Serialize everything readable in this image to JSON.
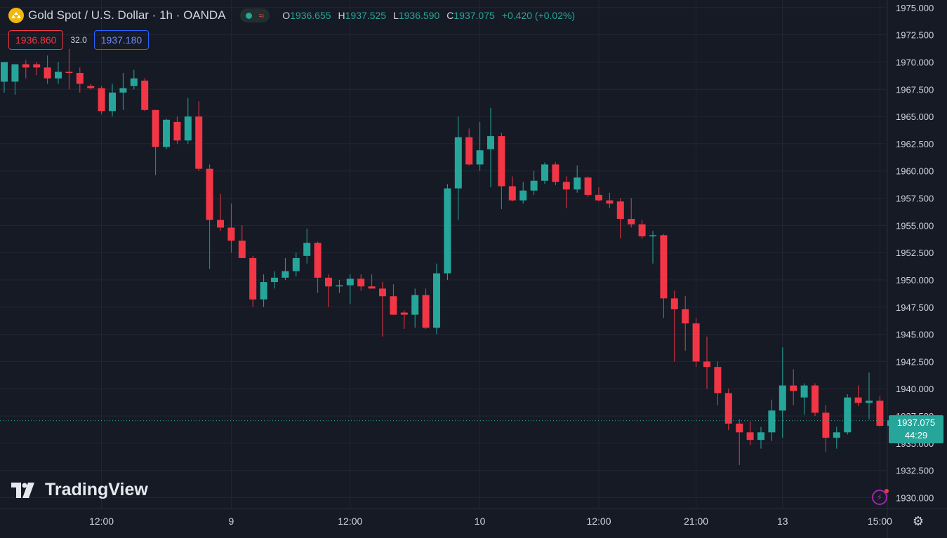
{
  "header": {
    "symbol_title": "Gold Spot",
    "separator": "/",
    "quote": "U.S. Dollar",
    "interval": "1h",
    "exchange": "OANDA",
    "full_title": "Gold Spot / U.S. Dollar · 1h · OANDA",
    "ohlc": {
      "o_label": "O",
      "o_value": "1936.655",
      "h_label": "H",
      "h_value": "1937.525",
      "l_label": "L",
      "l_value": "1936.590",
      "c_label": "C",
      "c_value": "1937.075",
      "change": "+0.420 (+0.02%)"
    }
  },
  "trade": {
    "sell_price": "1936.860",
    "spread": "32.0",
    "buy_price": "1937.180"
  },
  "brand": {
    "name": "TradingView"
  },
  "price_tag": {
    "price": "1937.075",
    "countdown": "44:29"
  },
  "colors": {
    "background": "#161a25",
    "up": "#26a69a",
    "down": "#f23645",
    "grid": "#232634",
    "axis_text": "#d1d4dc"
  },
  "icons": [
    "gold-logo-icon",
    "wave-icon",
    "flash-icon",
    "settings-gear-icon"
  ],
  "chart_data": {
    "type": "candlestick",
    "title": "Gold Spot / U.S. Dollar · 1h · OANDA",
    "ylim": [
      1929.0,
      1975.7
    ],
    "y_ticks": [
      "1975.000",
      "1972.500",
      "1970.000",
      "1967.500",
      "1965.000",
      "1962.500",
      "1960.000",
      "1957.500",
      "1955.000",
      "1952.500",
      "1950.000",
      "1947.500",
      "1945.000",
      "1942.500",
      "1940.000",
      "1937.500",
      "1935.000",
      "1932.500",
      "1930.000"
    ],
    "x_ticks": [
      {
        "label": "12:00",
        "index": 9
      },
      {
        "label": "9",
        "index": 21
      },
      {
        "label": "12:00",
        "index": 32
      },
      {
        "label": "10",
        "index": 44
      },
      {
        "label": "12:00",
        "index": 55
      },
      {
        "label": "21:00",
        "index": 64
      },
      {
        "label": "13",
        "index": 72
      },
      {
        "label": "15:00",
        "index": 81
      }
    ],
    "last_price": 1937.075,
    "candles": [
      {
        "o": 1968.2,
        "h": 1969.8,
        "l": 1967.2,
        "c": 1970.0
      },
      {
        "o": 1968.2,
        "h": 1969.8,
        "l": 1967.0,
        "c": 1969.8
      },
      {
        "o": 1969.8,
        "h": 1970.2,
        "l": 1968.5,
        "c": 1969.5
      },
      {
        "o": 1969.8,
        "h": 1970.0,
        "l": 1968.8,
        "c": 1969.5
      },
      {
        "o": 1969.5,
        "h": 1970.6,
        "l": 1968.0,
        "c": 1968.5
      },
      {
        "o": 1968.5,
        "h": 1970.0,
        "l": 1968.0,
        "c": 1969.1
      },
      {
        "o": 1969.1,
        "h": 1971.2,
        "l": 1967.5,
        "c": 1969.0
      },
      {
        "o": 1969.0,
        "h": 1969.5,
        "l": 1967.2,
        "c": 1968.0
      },
      {
        "o": 1967.8,
        "h": 1968.0,
        "l": 1967.5,
        "c": 1967.6
      },
      {
        "o": 1967.6,
        "h": 1967.8,
        "l": 1965.2,
        "c": 1965.5
      },
      {
        "o": 1965.5,
        "h": 1968.0,
        "l": 1965.0,
        "c": 1967.2
      },
      {
        "o": 1967.2,
        "h": 1969.0,
        "l": 1965.6,
        "c": 1967.6
      },
      {
        "o": 1967.8,
        "h": 1969.3,
        "l": 1967.5,
        "c": 1968.5
      },
      {
        "o": 1968.3,
        "h": 1968.5,
        "l": 1965.5,
        "c": 1965.6
      },
      {
        "o": 1965.6,
        "h": 1965.5,
        "l": 1959.6,
        "c": 1962.2
      },
      {
        "o": 1962.2,
        "h": 1964.8,
        "l": 1962.0,
        "c": 1964.7
      },
      {
        "o": 1964.5,
        "h": 1965.0,
        "l": 1962.5,
        "c": 1962.8
      },
      {
        "o": 1962.8,
        "h": 1966.7,
        "l": 1962.5,
        "c": 1965.0
      },
      {
        "o": 1965.0,
        "h": 1966.4,
        "l": 1960.0,
        "c": 1960.2
      },
      {
        "o": 1960.2,
        "h": 1960.6,
        "l": 1951.0,
        "c": 1955.5
      },
      {
        "o": 1955.5,
        "h": 1957.9,
        "l": 1954.5,
        "c": 1954.8
      },
      {
        "o": 1954.8,
        "h": 1957.0,
        "l": 1952.5,
        "c": 1953.6
      },
      {
        "o": 1953.6,
        "h": 1955.0,
        "l": 1952.0,
        "c": 1952.0
      },
      {
        "o": 1952.0,
        "h": 1952.2,
        "l": 1947.5,
        "c": 1948.2
      },
      {
        "o": 1948.2,
        "h": 1950.5,
        "l": 1947.5,
        "c": 1949.8
      },
      {
        "o": 1949.8,
        "h": 1950.8,
        "l": 1949.2,
        "c": 1950.2
      },
      {
        "o": 1950.2,
        "h": 1952.0,
        "l": 1950.0,
        "c": 1950.8
      },
      {
        "o": 1950.8,
        "h": 1952.5,
        "l": 1950.3,
        "c": 1952.0
      },
      {
        "o": 1952.2,
        "h": 1954.7,
        "l": 1951.5,
        "c": 1953.4
      },
      {
        "o": 1953.4,
        "h": 1953.5,
        "l": 1948.8,
        "c": 1950.2
      },
      {
        "o": 1950.2,
        "h": 1950.5,
        "l": 1947.5,
        "c": 1949.4
      },
      {
        "o": 1949.4,
        "h": 1950.0,
        "l": 1948.8,
        "c": 1949.5
      },
      {
        "o": 1949.5,
        "h": 1950.5,
        "l": 1947.8,
        "c": 1950.1
      },
      {
        "o": 1950.1,
        "h": 1950.5,
        "l": 1949.0,
        "c": 1949.4
      },
      {
        "o": 1949.4,
        "h": 1950.5,
        "l": 1949.3,
        "c": 1949.2
      },
      {
        "o": 1949.2,
        "h": 1949.8,
        "l": 1944.8,
        "c": 1948.5
      },
      {
        "o": 1948.5,
        "h": 1949.6,
        "l": 1946.8,
        "c": 1946.8
      },
      {
        "o": 1947.0,
        "h": 1947.2,
        "l": 1945.5,
        "c": 1946.8
      },
      {
        "o": 1946.8,
        "h": 1949.2,
        "l": 1945.6,
        "c": 1948.6
      },
      {
        "o": 1948.6,
        "h": 1949.2,
        "l": 1945.5,
        "c": 1945.6
      },
      {
        "o": 1945.6,
        "h": 1951.5,
        "l": 1945.0,
        "c": 1950.6
      },
      {
        "o": 1950.6,
        "h": 1958.8,
        "l": 1950.0,
        "c": 1958.4
      },
      {
        "o": 1958.4,
        "h": 1965.0,
        "l": 1955.5,
        "c": 1963.1
      },
      {
        "o": 1963.1,
        "h": 1963.9,
        "l": 1960.5,
        "c": 1960.6
      },
      {
        "o": 1960.6,
        "h": 1964.5,
        "l": 1960.0,
        "c": 1961.9
      },
      {
        "o": 1962.0,
        "h": 1965.8,
        "l": 1958.5,
        "c": 1963.2
      },
      {
        "o": 1963.2,
        "h": 1963.5,
        "l": 1956.5,
        "c": 1958.6
      },
      {
        "o": 1958.6,
        "h": 1959.5,
        "l": 1957.2,
        "c": 1957.3
      },
      {
        "o": 1957.3,
        "h": 1959.0,
        "l": 1957.0,
        "c": 1958.2
      },
      {
        "o": 1958.2,
        "h": 1960.0,
        "l": 1957.8,
        "c": 1959.1
      },
      {
        "o": 1959.1,
        "h": 1960.8,
        "l": 1958.8,
        "c": 1960.6
      },
      {
        "o": 1960.6,
        "h": 1960.8,
        "l": 1958.7,
        "c": 1959.0
      },
      {
        "o": 1959.0,
        "h": 1959.5,
        "l": 1956.6,
        "c": 1958.3
      },
      {
        "o": 1958.3,
        "h": 1960.5,
        "l": 1958.0,
        "c": 1959.4
      },
      {
        "o": 1959.4,
        "h": 1959.5,
        "l": 1957.6,
        "c": 1957.8
      },
      {
        "o": 1957.8,
        "h": 1958.5,
        "l": 1957.2,
        "c": 1957.3
      },
      {
        "o": 1957.3,
        "h": 1958.0,
        "l": 1956.6,
        "c": 1957.0
      },
      {
        "o": 1957.2,
        "h": 1957.5,
        "l": 1953.8,
        "c": 1955.6
      },
      {
        "o": 1955.6,
        "h": 1957.5,
        "l": 1954.8,
        "c": 1955.1
      },
      {
        "o": 1955.1,
        "h": 1955.5,
        "l": 1953.8,
        "c": 1954.0
      },
      {
        "o": 1954.0,
        "h": 1954.5,
        "l": 1951.5,
        "c": 1954.1
      },
      {
        "o": 1954.1,
        "h": 1954.2,
        "l": 1946.5,
        "c": 1948.3
      },
      {
        "o": 1948.3,
        "h": 1949.0,
        "l": 1942.5,
        "c": 1947.3
      },
      {
        "o": 1947.3,
        "h": 1948.5,
        "l": 1943.5,
        "c": 1946.0
      },
      {
        "o": 1946.0,
        "h": 1946.5,
        "l": 1942.0,
        "c": 1942.5
      },
      {
        "o": 1942.5,
        "h": 1944.8,
        "l": 1940.0,
        "c": 1942.0
      },
      {
        "o": 1942.0,
        "h": 1942.5,
        "l": 1938.5,
        "c": 1939.6
      },
      {
        "o": 1939.6,
        "h": 1940.0,
        "l": 1936.2,
        "c": 1936.8
      },
      {
        "o": 1936.8,
        "h": 1937.2,
        "l": 1933.0,
        "c": 1936.0
      },
      {
        "o": 1936.0,
        "h": 1937.0,
        "l": 1934.8,
        "c": 1935.3
      },
      {
        "o": 1935.3,
        "h": 1936.5,
        "l": 1934.5,
        "c": 1936.0
      },
      {
        "o": 1936.0,
        "h": 1939.0,
        "l": 1935.2,
        "c": 1938.0
      },
      {
        "o": 1938.0,
        "h": 1943.8,
        "l": 1935.5,
        "c": 1940.3
      },
      {
        "o": 1940.3,
        "h": 1941.8,
        "l": 1938.5,
        "c": 1939.8
      },
      {
        "o": 1939.2,
        "h": 1940.5,
        "l": 1937.6,
        "c": 1940.3
      },
      {
        "o": 1940.3,
        "h": 1940.5,
        "l": 1937.5,
        "c": 1937.8
      },
      {
        "o": 1937.8,
        "h": 1938.5,
        "l": 1934.2,
        "c": 1935.5
      },
      {
        "o": 1935.5,
        "h": 1936.5,
        "l": 1934.5,
        "c": 1936.0
      },
      {
        "o": 1936.0,
        "h": 1939.5,
        "l": 1935.8,
        "c": 1939.2
      },
      {
        "o": 1939.2,
        "h": 1940.3,
        "l": 1938.4,
        "c": 1938.7
      },
      {
        "o": 1938.7,
        "h": 1941.5,
        "l": 1937.2,
        "c": 1938.9
      },
      {
        "o": 1938.9,
        "h": 1939.3,
        "l": 1936.5,
        "c": 1936.6
      },
      {
        "o": 1936.6,
        "h": 1937.5,
        "l": 1936.5,
        "c": 1937.1
      }
    ]
  }
}
